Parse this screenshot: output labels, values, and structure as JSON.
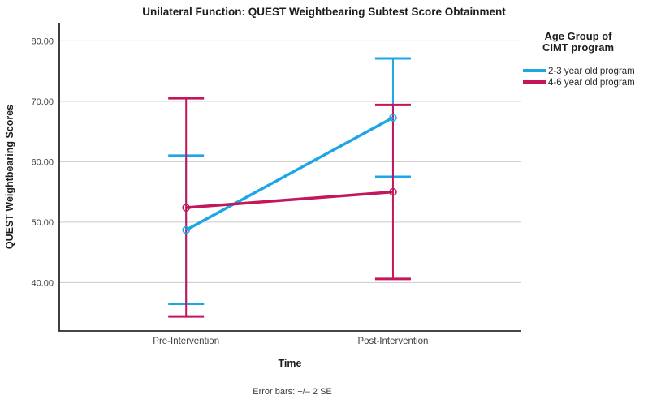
{
  "chart_data": {
    "type": "line",
    "title": "Unilateral Function: QUEST Weightbearing Subtest Score Obtainment",
    "xlabel": "Time",
    "ylabel": "QUEST Weightbearing Scores",
    "categories": [
      "Pre-Intervention",
      "Post-Intervention"
    ],
    "ytick_values": [
      80,
      70,
      60,
      50,
      40
    ],
    "ytick_labels": [
      "80.00",
      "70.00",
      "60.00",
      "50.00",
      "40.00"
    ],
    "ylim": [
      32,
      83
    ],
    "grid": "horizontal-only",
    "error_note": "Error bars: +/– 2 SE",
    "legend": {
      "position": "right",
      "title_lines": [
        "Age Group of",
        "CIMT program"
      ]
    },
    "series": [
      {
        "name": "2-3 year old program",
        "color": "#1ca6e8",
        "means": [
          48.7,
          67.3
        ],
        "upper": [
          61.0,
          77.1
        ],
        "lower": [
          36.5,
          57.5
        ]
      },
      {
        "name": "4-6 year old program",
        "color": "#c2175b",
        "means": [
          52.4,
          55.0
        ],
        "upper": [
          70.5,
          69.4
        ],
        "lower": [
          34.4,
          40.6
        ]
      }
    ],
    "colors": {
      "gridline": "#c9c9c9",
      "axis_line": "#2b2b2b"
    }
  }
}
